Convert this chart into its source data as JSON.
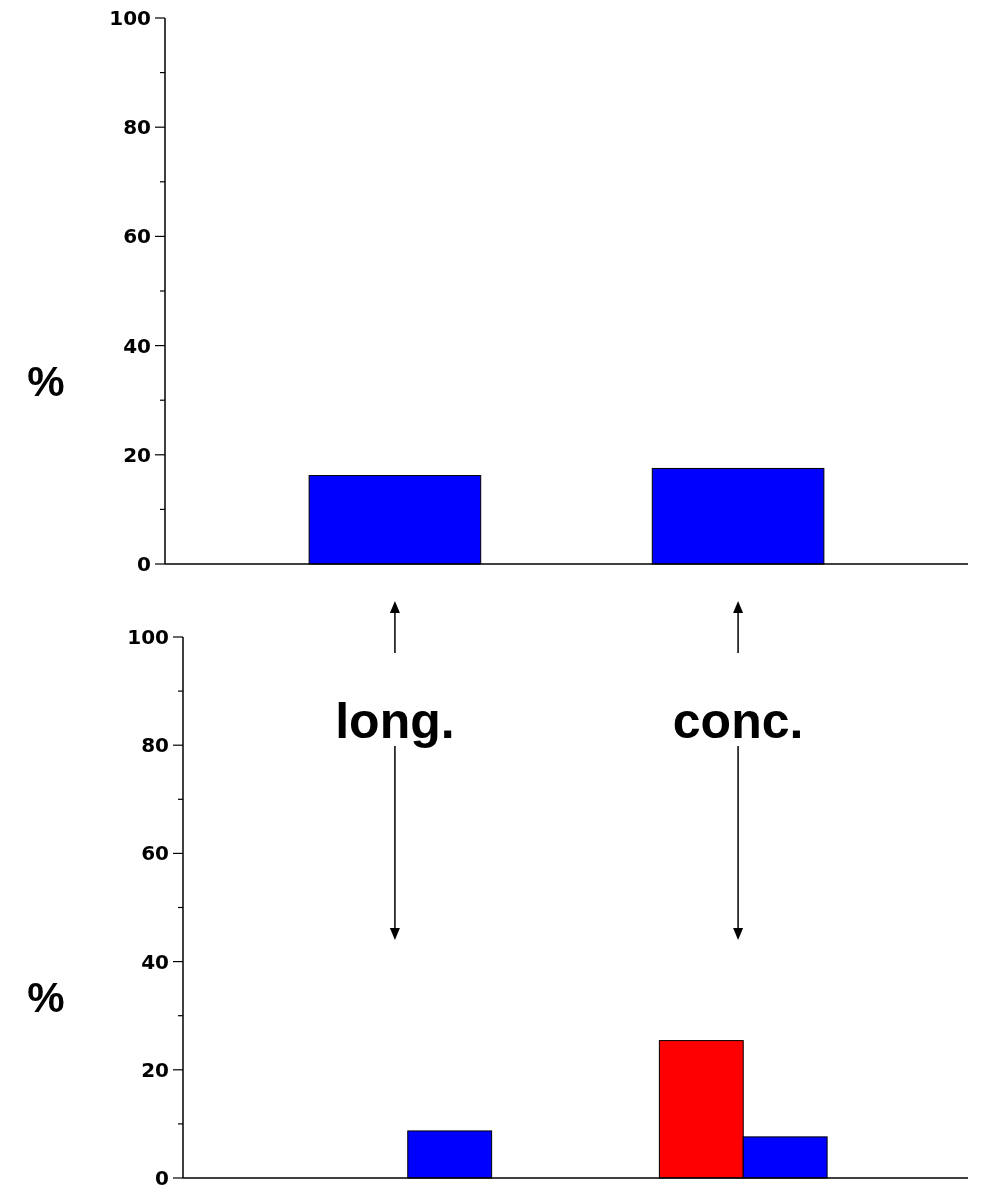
{
  "chart_data": [
    {
      "type": "bar",
      "ylabel": "%",
      "categories": [
        "long.",
        "conc."
      ],
      "series": [
        {
          "color": "#0000ff",
          "values": [
            16.2,
            17.5
          ]
        }
      ],
      "ylim": [
        0,
        100
      ],
      "yticks": [
        0,
        {
          "value": 10,
          "label": null
        },
        20,
        {
          "value": 30,
          "label": null
        },
        40,
        {
          "value": 50,
          "label": null
        },
        60,
        {
          "value": 70,
          "label": null
        },
        80,
        {
          "value": 90,
          "label": null
        },
        100
      ]
    },
    {
      "type": "bar",
      "ylabel": "%",
      "categories": [
        null,
        null
      ],
      "series": [
        {
          "color": "#ff0000",
          "values": [
            null,
            25.4
          ]
        },
        {
          "color": "#0000ff",
          "values": [
            8.7,
            7.6
          ]
        }
      ],
      "ylim": [
        0,
        100
      ],
      "yticks": [
        0,
        {
          "value": 10,
          "label": null
        },
        20,
        {
          "value": 30,
          "label": null
        },
        40,
        {
          "value": 50,
          "label": null
        },
        60,
        {
          "value": 70,
          "label": null
        },
        80,
        {
          "value": 90,
          "label": null
        },
        100
      ]
    }
  ]
}
